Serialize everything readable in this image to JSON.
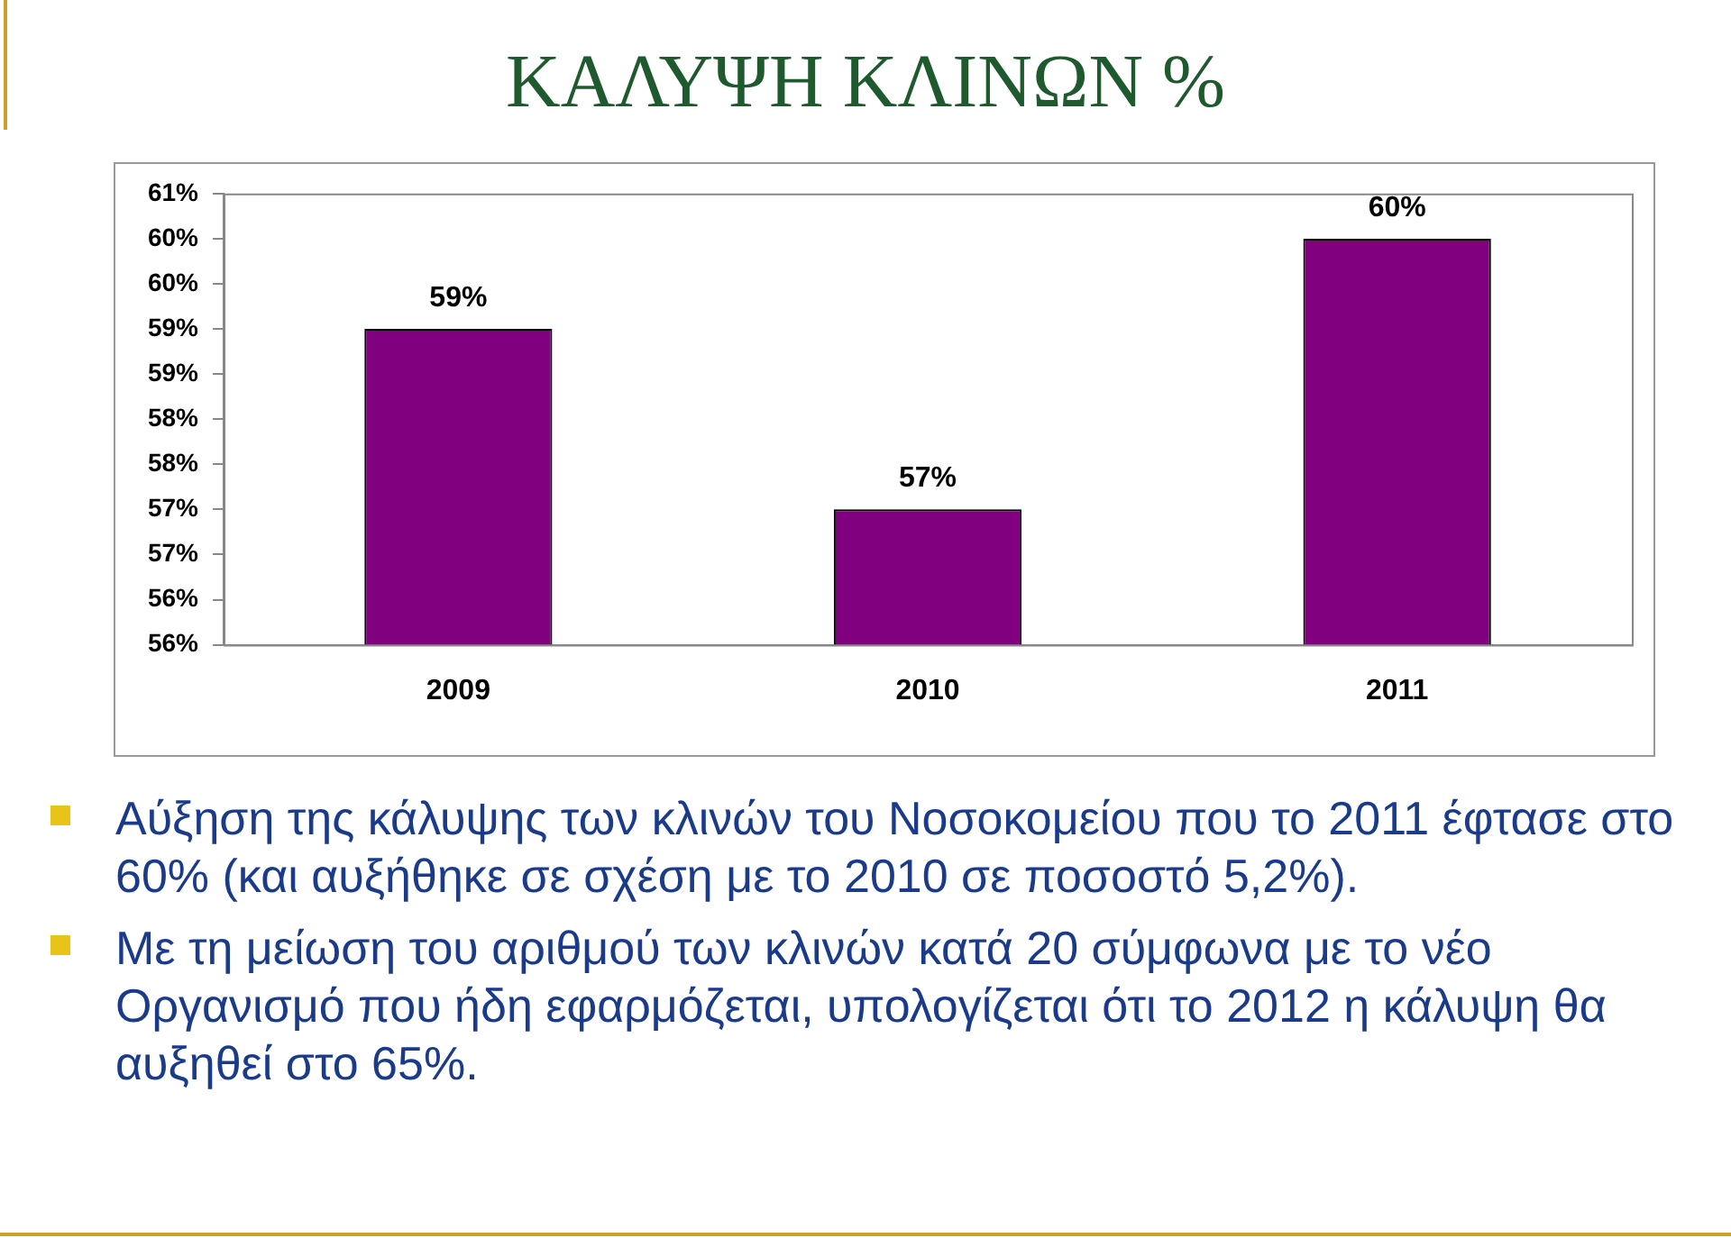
{
  "chart_data": {
    "type": "bar",
    "title": "ΚΑΛΥΨΗ ΚΛΙΝΩΝ %",
    "categories": [
      "2009",
      "2010",
      "2011"
    ],
    "values": [
      59,
      57,
      60
    ],
    "color": "#800080",
    "value_labels": [
      "59%",
      "57%",
      "60%"
    ],
    "ylim": [
      55.5,
      60.5
    ],
    "yticks": [
      {
        "value": 55.5,
        "label": "56%"
      },
      {
        "value": 56,
        "label": "56%"
      },
      {
        "value": 56.5,
        "label": "57%"
      },
      {
        "value": 57,
        "label": "57%"
      },
      {
        "value": 57.5,
        "label": "58%"
      },
      {
        "value": 58,
        "label": "58%"
      },
      {
        "value": 58.5,
        "label": "59%"
      },
      {
        "value": 59,
        "label": "59%"
      },
      {
        "value": 59.5,
        "label": "60%"
      },
      {
        "value": 60,
        "label": "60%"
      },
      {
        "value": 60.5,
        "label": "61%"
      }
    ],
    "grid": false,
    "legend": false,
    "annotations": [
      "Αύξηση της κάλυψης των κλινών του Νοσοκομείου που το 2011 έφτασε στο 60% (και αυξήθηκε σε σχέση με το 2010 σε ποσοστό 5,2%).",
      "Με τη μείωση του αριθμού των κλινών κατά 20 σύμφωνα με το νέο Οργανισμό που ήδη εφαρμόζεται, υπολογίζεται ότι το 2012 η κάλυψη θα αυξηθεί στο 65%."
    ]
  }
}
